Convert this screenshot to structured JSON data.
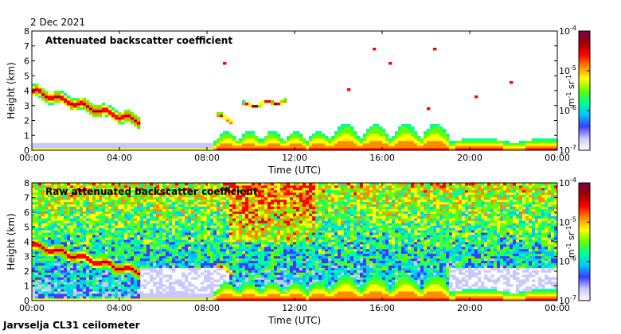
{
  "date": "2 Dec 2021",
  "footer": "Jarvselja CL31 ceilometer",
  "colors": {
    "scale": [
      "#ffffff",
      "#c8c8ff",
      "#3c3cff",
      "#00c8ff",
      "#00ff96",
      "#64ff00",
      "#ffff00",
      "#ff8c00",
      "#ff0000",
      "#a00000",
      "#7a004a"
    ],
    "mask": "#ffffff",
    "frame": "#000000"
  },
  "chart_data": [
    {
      "type": "heatmap",
      "title": "Attenuated backscatter coefficient",
      "xlabel": "Time (UTC)",
      "ylabel": "Height (km)",
      "xlim": [
        0,
        24
      ],
      "ylim": [
        0,
        8
      ],
      "x_ticks": [
        "00:00",
        "04:00",
        "08:00",
        "12:00",
        "16:00",
        "20:00",
        "00:00"
      ],
      "y_ticks": [
        "0",
        "1",
        "2",
        "3",
        "4",
        "5",
        "6",
        "7",
        "8"
      ],
      "colorbar": {
        "label_base": "m",
        "label_exp1": "-1",
        "label_mid": " sr",
        "label_exp2": "-1",
        "scale": "log",
        "range": [
          1e-07,
          0.0001
        ],
        "ticks": [
          {
            "base": "10",
            "exp": "-7"
          },
          {
            "base": "10",
            "exp": "-6"
          },
          {
            "base": "10",
            "exp": "-5"
          },
          {
            "base": "10",
            "exp": "-4"
          }
        ]
      },
      "features": [
        {
          "kind": "cloud_layer",
          "t0": 0.0,
          "t1": 5.0,
          "h0": 4.0,
          "h1": 1.9,
          "thick": 0.8
        },
        {
          "kind": "cloud_layer",
          "t0": 8.4,
          "t1": 9.2,
          "h0": 2.3,
          "h1": 2.0,
          "thick": 0.3
        },
        {
          "kind": "cloud_layer",
          "t0": 9.6,
          "t1": 11.6,
          "h0": 3.0,
          "h1": 3.3,
          "thick": 0.25
        },
        {
          "kind": "boundary_layer",
          "t0": 0.0,
          "t1": 24.0,
          "h_max": 2.0
        },
        {
          "kind": "sparse_noise",
          "t0": 8.0,
          "t1": 24.0
        }
      ]
    },
    {
      "type": "heatmap",
      "title": "Raw attenuated backscatter coefficient",
      "xlabel": "Time (UTC)",
      "ylabel": "Height (km)",
      "xlim": [
        0,
        24
      ],
      "ylim": [
        0,
        8
      ],
      "x_ticks": [
        "00:00",
        "04:00",
        "08:00",
        "12:00",
        "16:00",
        "20:00",
        "00:00"
      ],
      "y_ticks": [
        "0",
        "1",
        "2",
        "3",
        "4",
        "5",
        "6",
        "7",
        "8"
      ],
      "colorbar": {
        "label_base": "m",
        "label_exp1": "-1",
        "label_mid": " sr",
        "label_exp2": "-1",
        "scale": "log",
        "range": [
          1e-07,
          0.0001
        ],
        "ticks": [
          {
            "base": "10",
            "exp": "-7"
          },
          {
            "base": "10",
            "exp": "-6"
          },
          {
            "base": "10",
            "exp": "-5"
          },
          {
            "base": "10",
            "exp": "-4"
          }
        ]
      },
      "features": [
        {
          "kind": "noise_field",
          "t0": 0.0,
          "t1": 24.0
        },
        {
          "kind": "cloud_layer",
          "t0": 0.0,
          "t1": 5.0,
          "h0": 3.8,
          "h1": 1.9,
          "thick": 0.8
        },
        {
          "kind": "cloud_layer",
          "t0": 8.4,
          "t1": 9.2,
          "h0": 2.3,
          "h1": 2.0,
          "thick": 0.3
        },
        {
          "kind": "boundary_layer",
          "t0": 0.0,
          "t1": 24.0,
          "h_max": 2.0
        }
      ]
    }
  ]
}
